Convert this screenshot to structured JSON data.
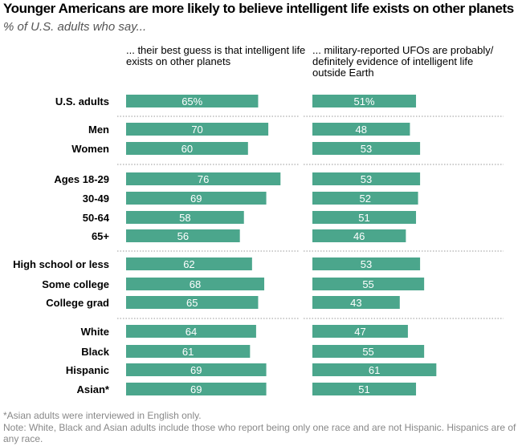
{
  "title": "Younger Americans are more likely to believe intelligent life exists on other planets",
  "subtitle": "% of U.S. adults who say...",
  "column_headers": [
    "... their best guess is that intelligent life exists on other planets",
    "... military-reported UFOs are probably/ definitely evidence of intelligent life outside Earth"
  ],
  "footnote": "*Asian adults were interviewed in English only.",
  "note": "Note: White, Black and Asian adults include those who report being only one race and are not Hispanic. Hispanics are of any race.",
  "colors": {
    "bar": "#4ba68c",
    "bar_label": "#ffffff",
    "separator": "#999999"
  },
  "chart_data": {
    "type": "bar",
    "orientation": "horizontal",
    "categories": [
      "U.S. adults",
      "Men",
      "Women",
      "Ages 18-29",
      "30-49",
      "50-64",
      "65+",
      "High school or less",
      "Some college",
      "College grad",
      "White",
      "Black",
      "Hispanic",
      "Asian*"
    ],
    "groups": [
      [
        0
      ],
      [
        1,
        2
      ],
      [
        3,
        4,
        5,
        6
      ],
      [
        7,
        8,
        9
      ],
      [
        10,
        11,
        12,
        13
      ]
    ],
    "series": [
      {
        "values": [
          65,
          70,
          60,
          76,
          69,
          58,
          56,
          62,
          68,
          65,
          64,
          61,
          69,
          69
        ],
        "labels": [
          "65%",
          "70",
          "60",
          "76",
          "69",
          "58",
          "56",
          "62",
          "68",
          "65",
          "64",
          "61",
          "69",
          "69"
        ]
      },
      {
        "values": [
          51,
          48,
          53,
          53,
          52,
          51,
          46,
          53,
          55,
          43,
          47,
          55,
          61,
          51
        ],
        "labels": [
          "51%",
          "48",
          "53",
          "53",
          "52",
          "51",
          "46",
          "53",
          "55",
          "43",
          "47",
          "55",
          "61",
          "51"
        ]
      }
    ]
  }
}
